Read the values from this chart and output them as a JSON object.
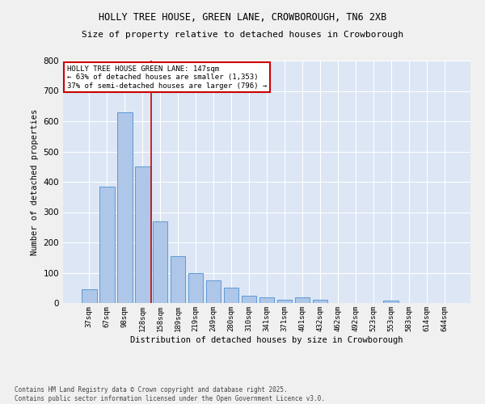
{
  "title_line1": "HOLLY TREE HOUSE, GREEN LANE, CROWBOROUGH, TN6 2XB",
  "title_line2": "Size of property relative to detached houses in Crowborough",
  "xlabel": "Distribution of detached houses by size in Crowborough",
  "ylabel": "Number of detached properties",
  "categories": [
    "37sqm",
    "67sqm",
    "98sqm",
    "128sqm",
    "158sqm",
    "189sqm",
    "219sqm",
    "249sqm",
    "280sqm",
    "310sqm",
    "341sqm",
    "371sqm",
    "401sqm",
    "432sqm",
    "462sqm",
    "492sqm",
    "523sqm",
    "553sqm",
    "583sqm",
    "614sqm",
    "644sqm"
  ],
  "values": [
    45,
    385,
    630,
    450,
    270,
    155,
    100,
    75,
    50,
    25,
    18,
    10,
    18,
    10,
    0,
    0,
    0,
    8,
    0,
    0,
    0
  ],
  "bar_color": "#aec6e8",
  "bar_edge_color": "#5b9bd5",
  "vline_x": 3.5,
  "vline_color": "#cc0000",
  "annotation_text": "HOLLY TREE HOUSE GREEN LANE: 147sqm\n← 63% of detached houses are smaller (1,353)\n37% of semi-detached houses are larger (796) →",
  "annotation_box_color": "#ffffff",
  "annotation_box_edge": "#cc0000",
  "ylim": [
    0,
    800
  ],
  "yticks": [
    0,
    100,
    200,
    300,
    400,
    500,
    600,
    700,
    800
  ],
  "fig_bg_color": "#f0f0f0",
  "plot_bg_color": "#dce6f5",
  "footer": "Contains HM Land Registry data © Crown copyright and database right 2025.\nContains public sector information licensed under the Open Government Licence v3.0."
}
